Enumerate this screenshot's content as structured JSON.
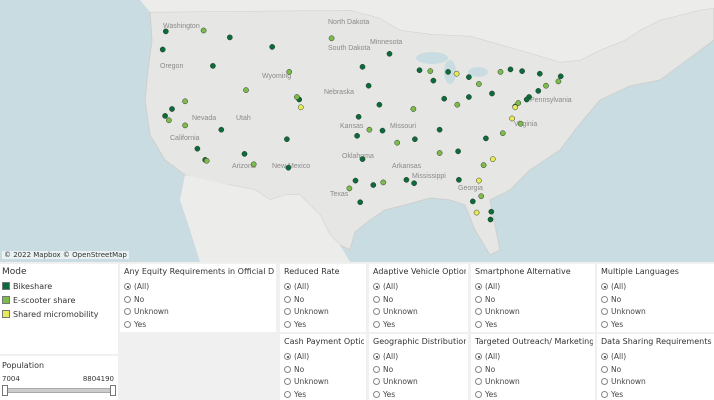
{
  "map": {
    "attribution": "© 2022 Mapbox © OpenStreetMap",
    "labels": {
      "washington": "Washington",
      "oregon": "Oregon",
      "nevada": "Nevada",
      "utah": "Utah",
      "california": "California",
      "arizona": "Arizona",
      "new_mexico": "New Mexico",
      "wyoming": "Wyoming",
      "north_dakota": "North Dakota",
      "south_dakota": "South Dakota",
      "nebraska": "Nebraska",
      "kansas": "Kansas",
      "minnesota": "Minnesota",
      "missouri": "Missouri",
      "oklahoma": "Oklahoma",
      "texas": "Texas",
      "arkansas": "Arkansas",
      "mississippi": "Mississippi",
      "georgia": "Georgia",
      "pennsylvania": "Pennsylvania",
      "virginia": "Virginia"
    },
    "colors": {
      "bikeshare": "#0b6b3a",
      "escooter": "#7dbb4b",
      "shared": "#e8ea5a"
    },
    "points": [
      {
        "lon": -122.3,
        "lat": 47.6,
        "mode": "bikeshare"
      },
      {
        "lon": -122.7,
        "lat": 45.5,
        "mode": "bikeshare"
      },
      {
        "lon": -117.4,
        "lat": 47.7,
        "mode": "escooter"
      },
      {
        "lon": -116.2,
        "lat": 43.6,
        "mode": "bikeshare"
      },
      {
        "lon": -122.4,
        "lat": 37.8,
        "mode": "bikeshare"
      },
      {
        "lon": -121.9,
        "lat": 37.3,
        "mode": "escooter"
      },
      {
        "lon": -121.5,
        "lat": 38.6,
        "mode": "bikeshare"
      },
      {
        "lon": -118.2,
        "lat": 34.0,
        "mode": "bikeshare"
      },
      {
        "lon": -117.2,
        "lat": 32.7,
        "mode": "bikeshare"
      },
      {
        "lon": -119.8,
        "lat": 36.7,
        "mode": "escooter"
      },
      {
        "lon": -115.1,
        "lat": 36.2,
        "mode": "bikeshare"
      },
      {
        "lon": -111.9,
        "lat": 40.8,
        "mode": "escooter"
      },
      {
        "lon": -112.1,
        "lat": 33.4,
        "mode": "bikeshare"
      },
      {
        "lon": -110.9,
        "lat": 32.2,
        "mode": "escooter"
      },
      {
        "lon": -106.6,
        "lat": 35.1,
        "mode": "bikeshare"
      },
      {
        "lon": -105.0,
        "lat": 39.7,
        "mode": "bikeshare"
      },
      {
        "lon": -104.8,
        "lat": 38.8,
        "mode": "shared"
      },
      {
        "lon": -105.3,
        "lat": 40.0,
        "mode": "escooter"
      },
      {
        "lon": -106.4,
        "lat": 31.8,
        "mode": "bikeshare"
      },
      {
        "lon": -97.7,
        "lat": 30.3,
        "mode": "bikeshare"
      },
      {
        "lon": -98.5,
        "lat": 29.4,
        "mode": "escooter"
      },
      {
        "lon": -95.4,
        "lat": 29.8,
        "mode": "bikeshare"
      },
      {
        "lon": -96.8,
        "lat": 32.8,
        "mode": "bikeshare"
      },
      {
        "lon": -97.5,
        "lat": 35.5,
        "mode": "bikeshare"
      },
      {
        "lon": -95.9,
        "lat": 36.2,
        "mode": "escooter"
      },
      {
        "lon": -97.3,
        "lat": 37.7,
        "mode": "bikeshare"
      },
      {
        "lon": -94.6,
        "lat": 39.1,
        "mode": "bikeshare"
      },
      {
        "lon": -96.0,
        "lat": 41.3,
        "mode": "bikeshare"
      },
      {
        "lon": -93.3,
        "lat": 45.0,
        "mode": "bikeshare"
      },
      {
        "lon": -90.2,
        "lat": 38.6,
        "mode": "escooter"
      },
      {
        "lon": -87.6,
        "lat": 41.9,
        "mode": "bikeshare"
      },
      {
        "lon": -86.2,
        "lat": 39.8,
        "mode": "bikeshare"
      },
      {
        "lon": -84.5,
        "lat": 39.1,
        "mode": "escooter"
      },
      {
        "lon": -83.0,
        "lat": 40.0,
        "mode": "bikeshare"
      },
      {
        "lon": -83.0,
        "lat": 42.3,
        "mode": "bikeshare"
      },
      {
        "lon": -81.7,
        "lat": 41.5,
        "mode": "escooter"
      },
      {
        "lon": -80.0,
        "lat": 40.4,
        "mode": "bikeshare"
      },
      {
        "lon": -86.8,
        "lat": 36.2,
        "mode": "bikeshare"
      },
      {
        "lon": -90.0,
        "lat": 35.1,
        "mode": "bikeshare"
      },
      {
        "lon": -84.4,
        "lat": 33.7,
        "mode": "bikeshare"
      },
      {
        "lon": -86.8,
        "lat": 33.5,
        "mode": "escooter"
      },
      {
        "lon": -90.1,
        "lat": 30.0,
        "mode": "bikeshare"
      },
      {
        "lon": -82.5,
        "lat": 27.9,
        "mode": "bikeshare"
      },
      {
        "lon": -81.4,
        "lat": 28.5,
        "mode": "escooter"
      },
      {
        "lon": -80.2,
        "lat": 25.8,
        "mode": "bikeshare"
      },
      {
        "lon": -81.7,
        "lat": 30.3,
        "mode": "shared"
      },
      {
        "lon": -80.8,
        "lat": 35.2,
        "mode": "bikeshare"
      },
      {
        "lon": -78.6,
        "lat": 35.8,
        "mode": "escooter"
      },
      {
        "lon": -77.4,
        "lat": 37.5,
        "mode": "shared"
      },
      {
        "lon": -77.0,
        "lat": 38.9,
        "mode": "bikeshare"
      },
      {
        "lon": -76.6,
        "lat": 39.3,
        "mode": "escooter"
      },
      {
        "lon": -75.2,
        "lat": 40.0,
        "mode": "bikeshare"
      },
      {
        "lon": -74.0,
        "lat": 40.7,
        "mode": "bikeshare"
      },
      {
        "lon": -73.0,
        "lat": 41.3,
        "mode": "escooter"
      },
      {
        "lon": -71.1,
        "lat": 42.4,
        "mode": "bikeshare"
      },
      {
        "lon": -71.4,
        "lat": 41.8,
        "mode": "escooter"
      },
      {
        "lon": -73.8,
        "lat": 42.7,
        "mode": "bikeshare"
      },
      {
        "lon": -76.1,
        "lat": 43.0,
        "mode": "bikeshare"
      },
      {
        "lon": -78.9,
        "lat": 42.9,
        "mode": "escooter"
      },
      {
        "lon": -77.6,
        "lat": 43.2,
        "mode": "bikeshare"
      },
      {
        "lon": -79.9,
        "lat": 32.8,
        "mode": "shared"
      },
      {
        "lon": -81.1,
        "lat": 32.1,
        "mode": "escooter"
      },
      {
        "lon": -84.3,
        "lat": 30.4,
        "mode": "bikeshare"
      },
      {
        "lon": -89.4,
        "lat": 43.1,
        "mode": "bikeshare"
      },
      {
        "lon": -88.0,
        "lat": 43.0,
        "mode": "escooter"
      },
      {
        "lon": -85.7,
        "lat": 42.9,
        "mode": "bikeshare"
      },
      {
        "lon": -84.6,
        "lat": 42.7,
        "mode": "shared"
      },
      {
        "lon": -92.3,
        "lat": 34.7,
        "mode": "escooter"
      },
      {
        "lon": -91.1,
        "lat": 30.4,
        "mode": "bikeshare"
      },
      {
        "lon": -94.2,
        "lat": 36.1,
        "mode": "bikeshare"
      },
      {
        "lon": -100.8,
        "lat": 46.8,
        "mode": "escooter"
      },
      {
        "lon": -96.8,
        "lat": 43.5,
        "mode": "bikeshare"
      },
      {
        "lon": -106.3,
        "lat": 42.9,
        "mode": "escooter"
      },
      {
        "lon": -108.5,
        "lat": 45.8,
        "mode": "bikeshare"
      },
      {
        "lon": -114.0,
        "lat": 46.9,
        "mode": "bikeshare"
      },
      {
        "lon": -119.8,
        "lat": 39.5,
        "mode": "escooter"
      },
      {
        "lon": -117.0,
        "lat": 32.6,
        "mode": "escooter"
      },
      {
        "lon": -97.1,
        "lat": 27.8,
        "mode": "bikeshare"
      },
      {
        "lon": -94.1,
        "lat": 30.1,
        "mode": "escooter"
      },
      {
        "lon": -77.0,
        "lat": 38.8,
        "mode": "shared"
      },
      {
        "lon": -76.3,
        "lat": 36.9,
        "mode": "escooter"
      },
      {
        "lon": -75.5,
        "lat": 39.7,
        "mode": "bikeshare"
      },
      {
        "lon": -82.0,
        "lat": 26.6,
        "mode": "shared"
      },
      {
        "lon": -80.1,
        "lat": 26.7,
        "mode": "bikeshare"
      }
    ]
  },
  "legend": {
    "title": "Mode",
    "items": [
      {
        "label": "Bikeshare",
        "color": "#0b6b3a"
      },
      {
        "label": "E-scooter share",
        "color": "#7dbb4b"
      },
      {
        "label": "Shared micromobility",
        "color": "#e8ea5a"
      }
    ]
  },
  "population": {
    "title": "Population",
    "min": "7004",
    "max": "8804190"
  },
  "filters": [
    {
      "title": "Any Equity Requirements in Official Do...",
      "options": [
        "(All)",
        "No",
        "Unknown",
        "Yes"
      ]
    },
    {
      "title": "Reduced Rate",
      "options": [
        "(All)",
        "No",
        "Unknown",
        "Yes"
      ]
    },
    {
      "title": "Adaptive Vehicle Options",
      "options": [
        "(All)",
        "No",
        "Unknown",
        "Yes"
      ]
    },
    {
      "title": "Smartphone Alternative",
      "options": [
        "(All)",
        "No",
        "Unknown",
        "Yes"
      ]
    },
    {
      "title": "Multiple Languages",
      "options": [
        "(All)",
        "No",
        "Unknown",
        "Yes"
      ]
    },
    {
      "title": "Cash Payment Option",
      "options": [
        "(All)",
        "No",
        "Unknown",
        "Yes"
      ]
    },
    {
      "title": "Geographic Distribution",
      "options": [
        "(All)",
        "No",
        "Unknown",
        "Yes"
      ]
    },
    {
      "title": "Targeted Outreach/ Marketing",
      "options": [
        "(All)",
        "No",
        "Unknown",
        "Yes"
      ]
    },
    {
      "title": "Data Sharing Requirements",
      "options": [
        "(All)",
        "No",
        "Unknown",
        "Yes"
      ]
    }
  ]
}
